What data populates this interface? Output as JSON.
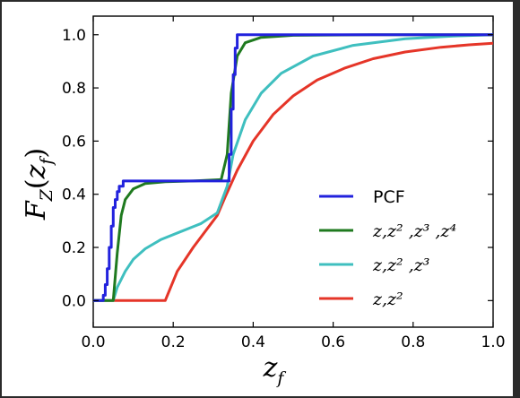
{
  "chart_data": {
    "type": "line",
    "xlabel": "z_f",
    "ylabel": "F_Z(z_f)",
    "xlim": [
      0.0,
      1.0
    ],
    "ylim": [
      -0.1,
      1.07
    ],
    "x_ticks": [
      0.0,
      0.2,
      0.4,
      0.6,
      0.8,
      1.0
    ],
    "x_tick_labels": [
      "0.0",
      "0.2",
      "0.4",
      "0.6",
      "0.8",
      "1.0"
    ],
    "y_ticks": [
      0.0,
      0.2,
      0.4,
      0.6,
      0.8,
      1.0
    ],
    "y_tick_labels": [
      "0.0",
      "0.2",
      "0.4",
      "0.6",
      "0.8",
      "1.0"
    ],
    "grid": false,
    "legend_position": "lower-right",
    "series": [
      {
        "name": "PCF",
        "legend_label": "PCF",
        "color": "#2222dd",
        "step": true,
        "x": [
          0.0,
          0.025,
          0.03,
          0.035,
          0.04,
          0.045,
          0.05,
          0.055,
          0.06,
          0.065,
          0.075,
          0.1,
          0.25,
          0.34,
          0.345,
          0.35,
          0.355,
          0.36,
          1.0
        ],
        "y": [
          0.0,
          0.02,
          0.06,
          0.12,
          0.2,
          0.28,
          0.35,
          0.38,
          0.41,
          0.43,
          0.45,
          0.45,
          0.45,
          0.55,
          0.72,
          0.85,
          0.95,
          1.0,
          1.0
        ]
      },
      {
        "name": "z,z^2,z^3,z^4",
        "legend_label": "z,z² ,z³ ,z⁴",
        "color": "#1f7a1f",
        "x": [
          0.0,
          0.05,
          0.06,
          0.07,
          0.08,
          0.1,
          0.13,
          0.18,
          0.25,
          0.32,
          0.335,
          0.345,
          0.36,
          0.38,
          0.42,
          0.5,
          0.7,
          1.0
        ],
        "y": [
          0.0,
          0.0,
          0.18,
          0.32,
          0.38,
          0.42,
          0.44,
          0.447,
          0.45,
          0.455,
          0.55,
          0.78,
          0.92,
          0.97,
          0.99,
          0.998,
          1.0,
          1.0
        ]
      },
      {
        "name": "z,z^2,z^3",
        "legend_label": "z,z² ,z³",
        "color": "#3fbfbf",
        "x": [
          0.0,
          0.05,
          0.06,
          0.08,
          0.1,
          0.13,
          0.17,
          0.22,
          0.27,
          0.31,
          0.335,
          0.35,
          0.38,
          0.42,
          0.47,
          0.55,
          0.65,
          0.78,
          0.9,
          1.0
        ],
        "y": [
          0.0,
          0.0,
          0.05,
          0.11,
          0.155,
          0.195,
          0.23,
          0.26,
          0.29,
          0.33,
          0.43,
          0.55,
          0.68,
          0.78,
          0.855,
          0.92,
          0.96,
          0.985,
          0.995,
          1.0
        ],
        "type": "line"
      },
      {
        "name": "z,z^2",
        "legend_label": "z,z²",
        "color": "#e53528",
        "x": [
          0.0,
          0.18,
          0.21,
          0.25,
          0.29,
          0.31,
          0.33,
          0.36,
          0.4,
          0.45,
          0.5,
          0.56,
          0.63,
          0.7,
          0.78,
          0.87,
          0.94,
          1.0
        ],
        "y": [
          0.0,
          0.0,
          0.11,
          0.2,
          0.28,
          0.32,
          0.39,
          0.49,
          0.6,
          0.7,
          0.77,
          0.83,
          0.875,
          0.91,
          0.935,
          0.953,
          0.962,
          0.968
        ]
      }
    ]
  }
}
